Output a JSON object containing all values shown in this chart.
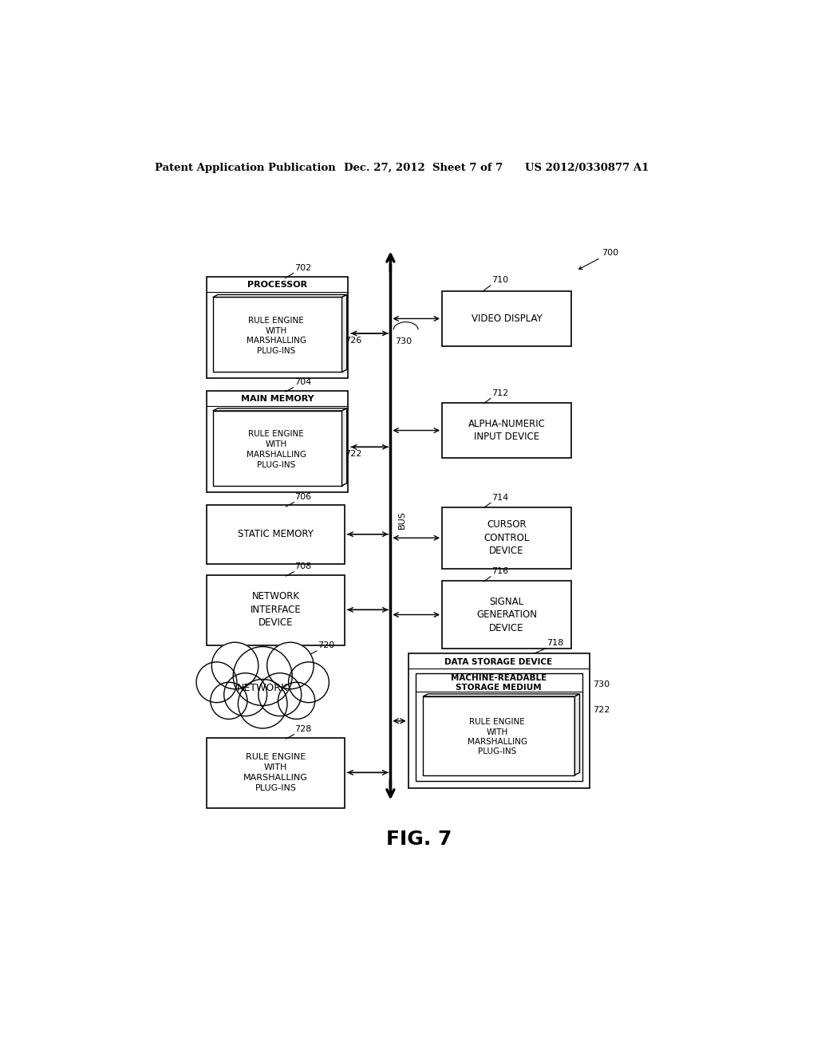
{
  "header_left": "Patent Application Publication",
  "header_mid": "Dec. 27, 2012  Sheet 7 of 7",
  "header_right": "US 2012/0330877 A1",
  "fig_label": "FIG. 7",
  "bg_color": "#ffffff",
  "line_color": "#000000"
}
